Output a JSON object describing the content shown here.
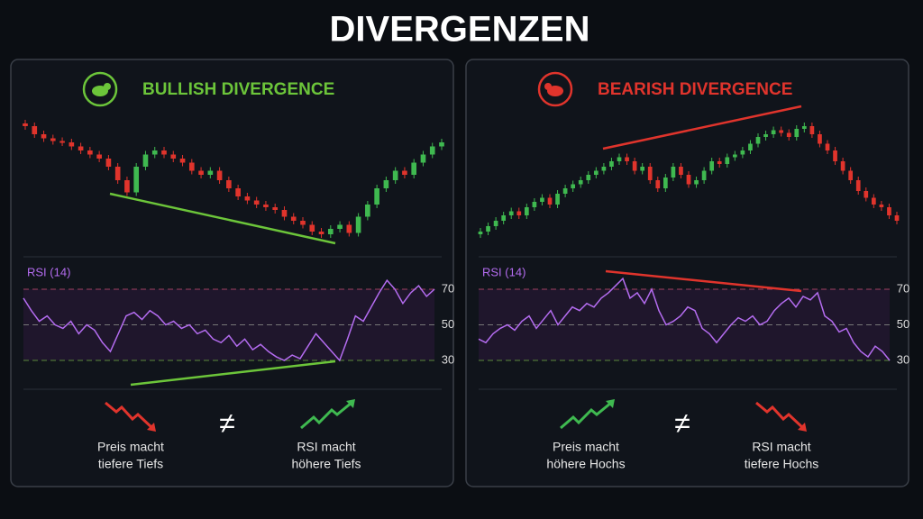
{
  "title": "DIVERGENZEN",
  "panels": [
    {
      "heading": "BULLISH DIVERGENCE",
      "color": "#6cc53a",
      "rsi_label": "RSI (14)",
      "rsi_ticks": [
        70,
        50,
        30
      ],
      "price_values": [
        88,
        82,
        79,
        77,
        76,
        73,
        70,
        67,
        64,
        58,
        48,
        39,
        58,
        67,
        70,
        67,
        64,
        61,
        55,
        52,
        55,
        48,
        42,
        36,
        33,
        30,
        28,
        26,
        21,
        18,
        15,
        10,
        8,
        12,
        15,
        9,
        21,
        30,
        42,
        48,
        55,
        52,
        61,
        67,
        73,
        76
      ],
      "rsi_values": [
        65,
        58,
        52,
        55,
        50,
        48,
        52,
        45,
        50,
        47,
        40,
        35,
        45,
        55,
        57,
        53,
        58,
        55,
        50,
        52,
        48,
        50,
        45,
        47,
        42,
        40,
        44,
        38,
        42,
        36,
        39,
        35,
        32,
        30,
        33,
        31,
        38,
        45,
        40,
        35,
        30,
        42,
        55,
        52,
        60,
        68,
        75,
        70,
        62,
        68,
        72,
        66,
        70
      ],
      "captions": [
        [
          "Preis macht",
          "tiefere Tiefs"
        ],
        [
          "RSI macht",
          "höhere Tiefs"
        ]
      ],
      "not_equal": "≠"
    },
    {
      "heading": "BEARISH DIVERGENCE",
      "color": "#e0342c",
      "rsi_label": "RSI (14)",
      "rsi_ticks": [
        70,
        50,
        30
      ],
      "price_values": [
        10,
        14,
        18,
        22,
        25,
        22,
        28,
        32,
        35,
        30,
        38,
        42,
        45,
        48,
        52,
        55,
        58,
        62,
        65,
        62,
        55,
        58,
        48,
        42,
        50,
        58,
        52,
        45,
        48,
        55,
        62,
        60,
        65,
        67,
        70,
        75,
        80,
        82,
        85,
        83,
        80,
        86,
        88,
        82,
        75,
        70,
        62,
        55,
        48,
        40,
        35,
        30,
        28,
        22,
        18
      ],
      "rsi_values": [
        42,
        40,
        45,
        48,
        50,
        47,
        52,
        55,
        48,
        53,
        58,
        50,
        55,
        60,
        58,
        62,
        60,
        65,
        68,
        72,
        76,
        65,
        68,
        62,
        70,
        58,
        50,
        52,
        55,
        60,
        58,
        48,
        45,
        40,
        45,
        50,
        54,
        52,
        55,
        50,
        52,
        58,
        62,
        65,
        60,
        66,
        64,
        68,
        55,
        52,
        46,
        48,
        40,
        35,
        32,
        38,
        35,
        30
      ],
      "captions": [
        [
          "Preis macht",
          "höhere Hochs"
        ],
        [
          "RSI macht",
          "tiefere Hochs"
        ]
      ],
      "not_equal": "≠"
    }
  ]
}
